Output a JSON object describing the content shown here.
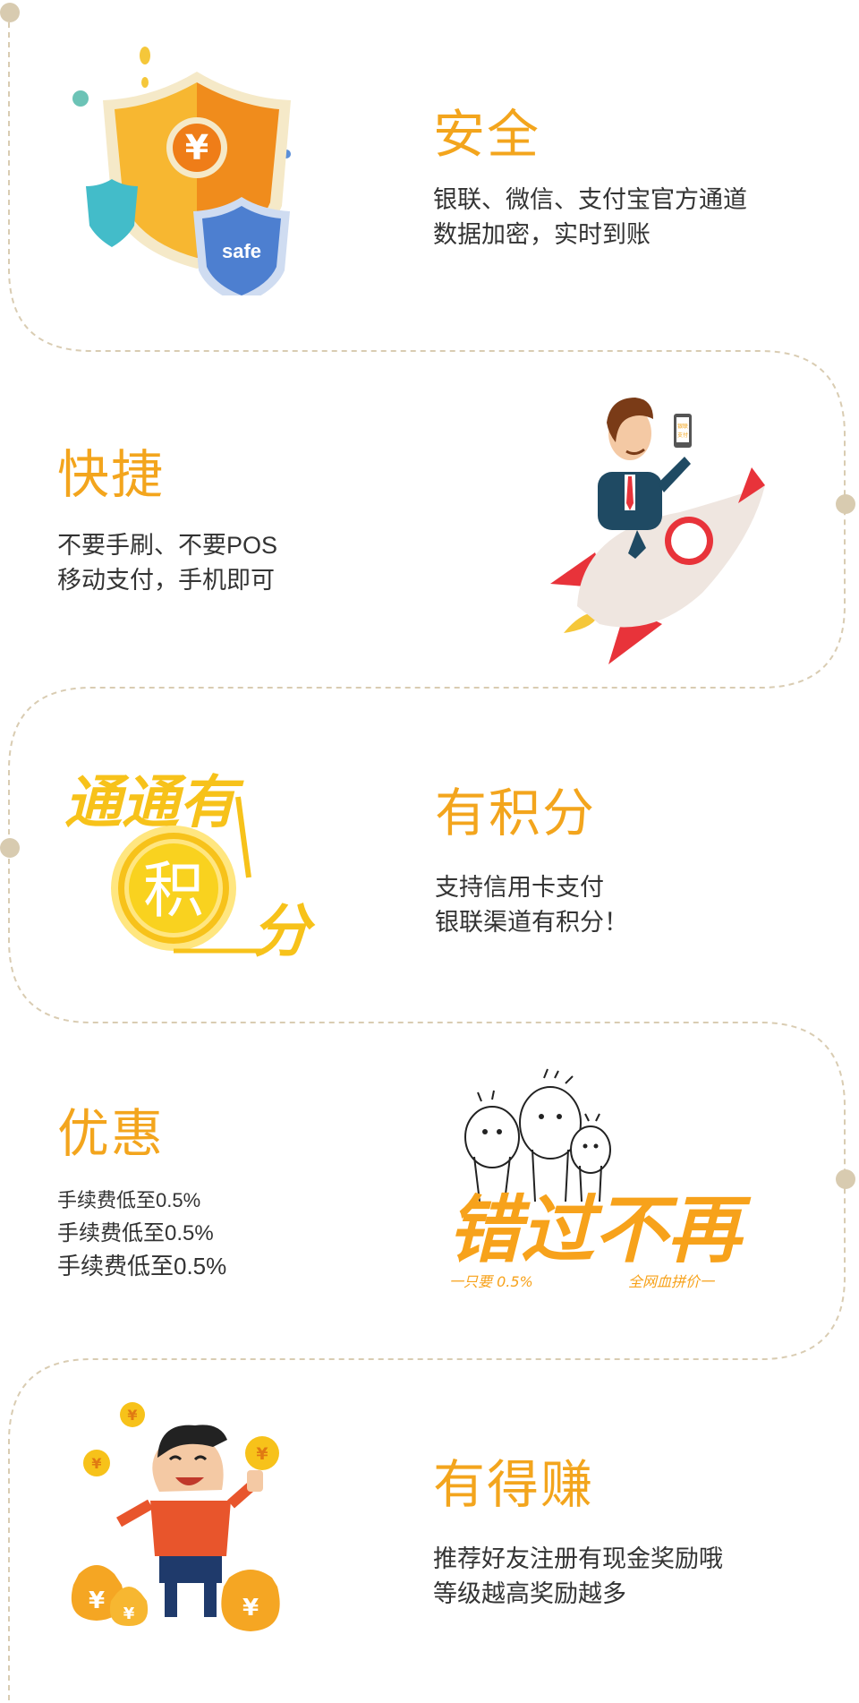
{
  "features": [
    {
      "title": "安全",
      "lines": [
        "银联、微信、支付宝官方通道",
        "数据加密，实时到账"
      ],
      "icon": "shield-icon",
      "badge": "safe",
      "currency_symbol": "¥"
    },
    {
      "title": "快捷",
      "lines": [
        "不要手刷、不要POS",
        "移动支付，手机即可"
      ],
      "icon": "rocket-businessman-icon",
      "phone_text": [
        "银联",
        "支付"
      ]
    },
    {
      "title": "有积分",
      "lines": [
        "支持信用卡支付",
        "银联渠道有积分！"
      ],
      "icon": "points-logo-icon",
      "logo_text": {
        "top": "通通有",
        "coin": "积",
        "bottom": "分"
      }
    },
    {
      "title": "优惠",
      "lines": [
        "手续费低至0.5%",
        "手续费低至0.5%",
        "手续费低至0.5%"
      ],
      "icon": "dont-miss-out-icon",
      "logo_text": {
        "main": "错过不再",
        "left": "一只要 0.5%",
        "right": "全网血拼价一"
      }
    },
    {
      "title": "有得赚",
      "lines": [
        "推荐好友注册有现金奖励哦",
        "等级越高奖励越多"
      ],
      "icon": "money-bags-man-icon",
      "currency_symbol": "¥"
    }
  ],
  "colors": {
    "accent": "#f3a51d",
    "text": "#333333",
    "dashed_line": "#d9ccb2",
    "dot": "#d8cbb0"
  }
}
